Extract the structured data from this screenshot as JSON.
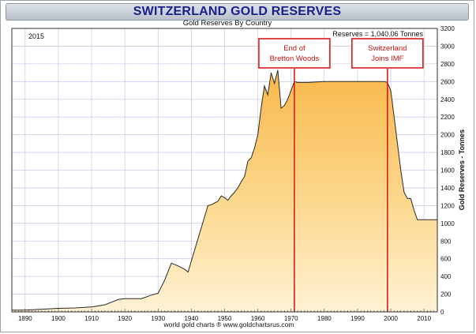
{
  "chart_data": {
    "type": "area",
    "title": "SWITZERLAND GOLD RESERVES",
    "subtitle": "Gold Reserves By Country",
    "year_label": "2015",
    "reserves_label": "Reserves = 1,040.06 Tonnes",
    "ylabel": "Gold Reserves - Tonnes",
    "footer": "world gold charts ® www.goldchartsrus.com",
    "xlim": [
      1886,
      2014
    ],
    "ylim": [
      0,
      3200
    ],
    "x_ticks": [
      1890,
      1900,
      1910,
      1920,
      1930,
      1940,
      1950,
      1960,
      1970,
      1980,
      1990,
      2000,
      2010
    ],
    "y_ticks": [
      0,
      200,
      400,
      600,
      800,
      1000,
      1200,
      1400,
      1600,
      1800,
      2000,
      2200,
      2400,
      2600,
      2800,
      3000,
      3200
    ],
    "annotations": [
      {
        "year": 1971,
        "lines": [
          "End of",
          "Bretton Woods"
        ]
      },
      {
        "year": 1999,
        "lines": [
          "Switzerland",
          "Joins IMF"
        ]
      }
    ],
    "series": [
      {
        "name": "Switzerland",
        "x": [
          1886,
          1890,
          1895,
          1900,
          1905,
          1910,
          1914,
          1916,
          1918,
          1920,
          1922,
          1925,
          1928,
          1930,
          1932,
          1934,
          1936,
          1938,
          1939,
          1941,
          1943,
          1945,
          1946,
          1947,
          1948,
          1949,
          1950,
          1951,
          1952,
          1953,
          1954,
          1955,
          1956,
          1957,
          1958,
          1959,
          1960,
          1961,
          1962,
          1963,
          1964,
          1965,
          1966,
          1967,
          1968,
          1969,
          1970,
          1971,
          1972,
          1975,
          1980,
          1985,
          1990,
          1998,
          1999,
          2000,
          2001,
          2002,
          2003,
          2004,
          2005,
          2006,
          2007,
          2008,
          2009,
          2010,
          2014
        ],
        "values": [
          20,
          20,
          30,
          40,
          45,
          55,
          80,
          110,
          140,
          150,
          150,
          150,
          190,
          210,
          360,
          550,
          520,
          480,
          450,
          700,
          950,
          1200,
          1210,
          1230,
          1250,
          1310,
          1290,
          1260,
          1310,
          1350,
          1400,
          1470,
          1530,
          1700,
          1740,
          1850,
          2000,
          2300,
          2550,
          2450,
          2700,
          2580,
          2730,
          2300,
          2330,
          2400,
          2500,
          2600,
          2590,
          2590,
          2600,
          2600,
          2600,
          2600,
          2590,
          2500,
          2200,
          1900,
          1600,
          1350,
          1280,
          1280,
          1150,
          1040,
          1040,
          1040,
          1040
        ]
      }
    ]
  }
}
